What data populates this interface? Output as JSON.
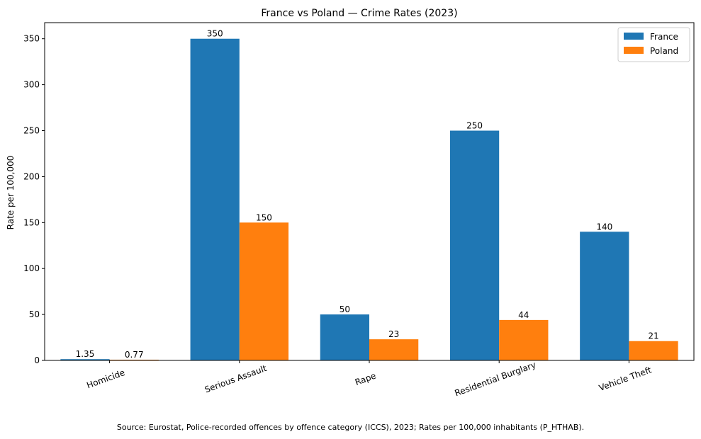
{
  "chart_data": {
    "type": "bar",
    "title": "France vs Poland — Crime Rates (2023)",
    "xlabel": "",
    "ylabel": "Rate per 100,000",
    "categories": [
      "Homicide",
      "Serious Assault",
      "Rape",
      "Residential Burglary",
      "Vehicle Theft"
    ],
    "series": [
      {
        "name": "France",
        "color": "#1f77b4",
        "values": [
          1.35,
          350,
          50,
          250,
          140
        ],
        "labels": [
          "1.35",
          "350",
          "50",
          "250",
          "140"
        ]
      },
      {
        "name": "Poland",
        "color": "#ff7f0e",
        "values": [
          0.77,
          150,
          23,
          44,
          21
        ],
        "labels": [
          "0.77",
          "150",
          "23",
          "44",
          "21"
        ]
      }
    ],
    "ylim": [
      0,
      367.5
    ],
    "yticks": [
      0,
      50,
      100,
      150,
      200,
      250,
      300,
      350
    ],
    "grid": false,
    "legend_position": "top-right"
  },
  "footer": "Source: Eurostat, Police-recorded offences by offence category (ICCS), 2023; Rates per 100,000 inhabitants (P_HTHAB)."
}
